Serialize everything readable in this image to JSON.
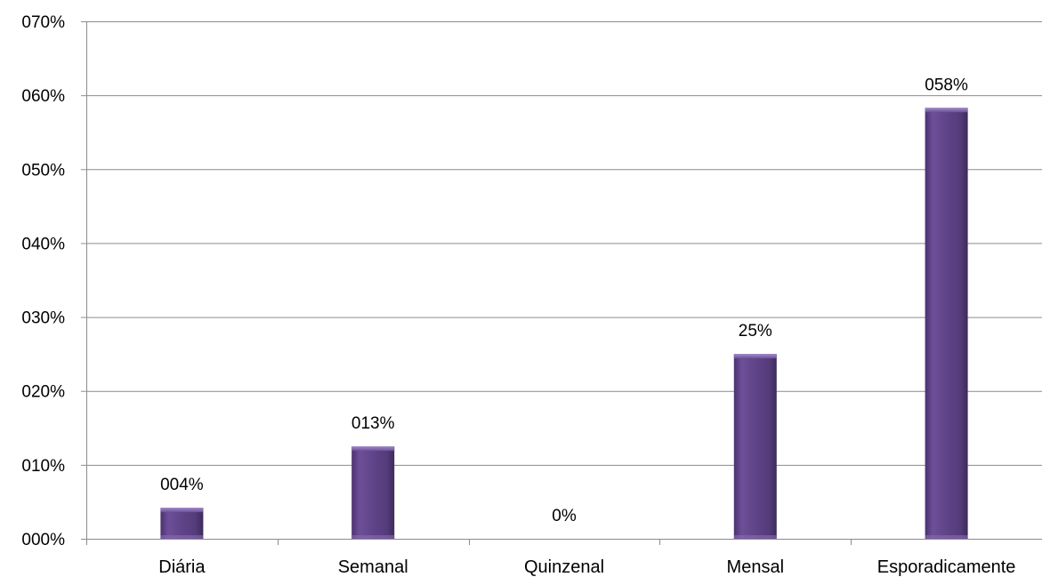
{
  "chart_data": {
    "type": "bar",
    "categories": [
      "Diária",
      "Semanal",
      "Quinzenal",
      "Mensal",
      "Esporadicamente"
    ],
    "values": [
      4.2,
      12.5,
      0,
      25,
      58.3
    ],
    "data_labels": [
      "004%",
      "013%",
      "0%",
      "25%",
      "058%"
    ],
    "ylim": [
      0,
      70
    ],
    "yticks": [
      0,
      10,
      20,
      30,
      40,
      50,
      60,
      70
    ],
    "ytick_labels": [
      "000%",
      "010%",
      "020%",
      "030%",
      "040%",
      "050%",
      "060%",
      "070%"
    ],
    "title": "",
    "xlabel": "",
    "ylabel": "",
    "grid": true,
    "legend": false,
    "bar_color": "#5f4488",
    "bar_highlight_color": "#8a6bb5",
    "bar_shadow_color": "#3d2a5c",
    "grid_color": "#8c8c8c"
  }
}
